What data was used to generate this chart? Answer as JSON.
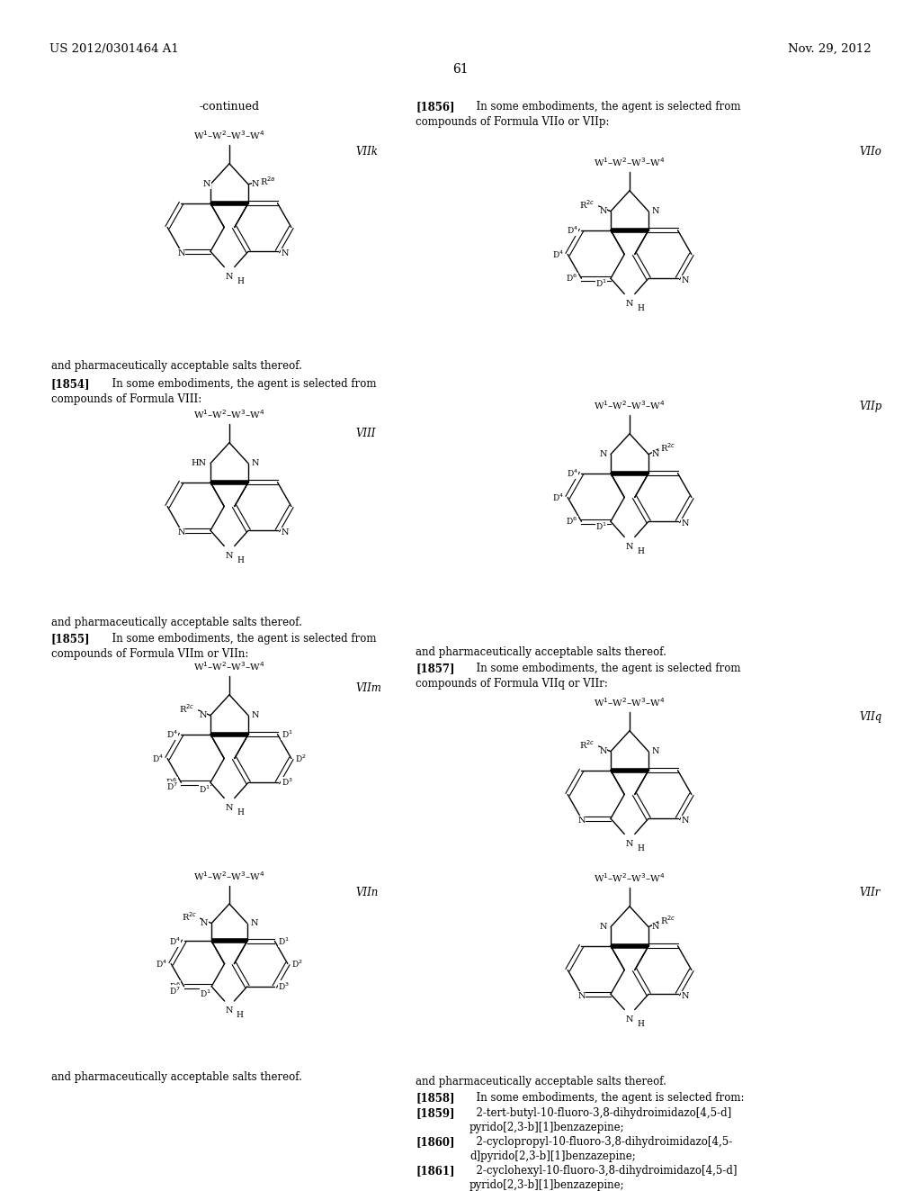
{
  "background_color": "#ffffff",
  "page_number": "61",
  "header_left": "US 2012/0301464 A1",
  "header_right": "Nov. 29, 2012",
  "font_size_body": 8.5,
  "font_size_header": 9.5,
  "font_size_page": 10
}
